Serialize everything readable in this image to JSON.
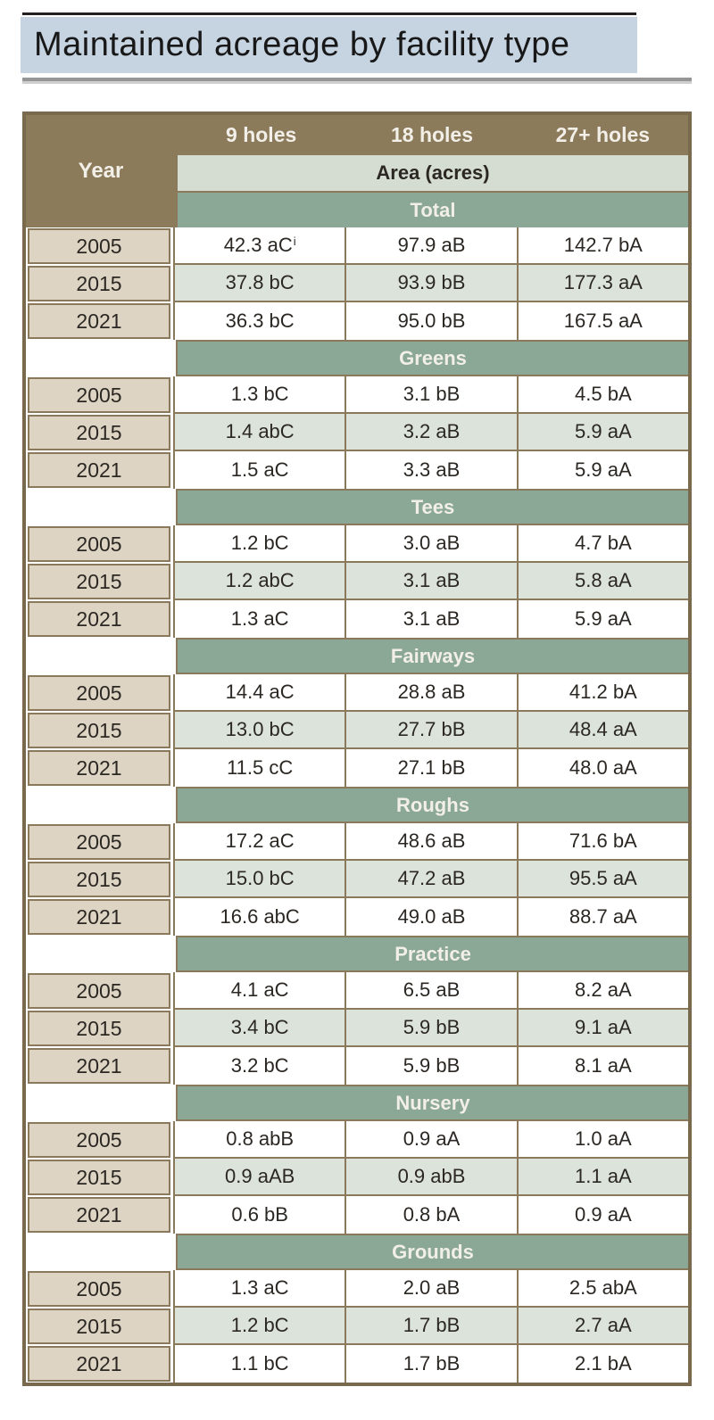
{
  "title": "Maintained acreage by facility type",
  "colors": {
    "title_band": "#c6d3e0",
    "header_brown": "#8c7b5b",
    "grid_brown": "#8a795a",
    "outer_border": "#7a6a4d",
    "year_cell_beige": "#ddd4c3",
    "section_sage": "#8ba795",
    "area_band_light": "#d5ddd3",
    "row_alt_green": "#dce3da",
    "header_text": "#f2efe8",
    "body_text": "#2b2723"
  },
  "chart_data": {
    "type": "table",
    "title": "Maintained acreage by facility type",
    "corner_label": "Year",
    "column_headers": [
      "9 holes",
      "18 holes",
      "27+ holes"
    ],
    "spanner": "Area (acres)",
    "sections": [
      {
        "label": "Total",
        "rows": [
          {
            "year": "2005",
            "values": [
              {
                "t": "42.3 aC",
                "sup": "i"
              },
              "97.9 aB",
              "142.7 bA"
            ]
          },
          {
            "year": "2015",
            "values": [
              "37.8 bC",
              "93.9 bB",
              "177.3 aA"
            ]
          },
          {
            "year": "2021",
            "values": [
              "36.3 bC",
              "95.0 bB",
              "167.5 aA"
            ]
          }
        ]
      },
      {
        "label": "Greens",
        "rows": [
          {
            "year": "2005",
            "values": [
              "1.3 bC",
              "3.1 bB",
              "4.5 bA"
            ]
          },
          {
            "year": "2015",
            "values": [
              "1.4 abC",
              "3.2 aB",
              "5.9 aA"
            ]
          },
          {
            "year": "2021",
            "values": [
              "1.5 aC",
              "3.3 aB",
              "5.9 aA"
            ]
          }
        ]
      },
      {
        "label": "Tees",
        "rows": [
          {
            "year": "2005",
            "values": [
              "1.2 bC",
              "3.0 aB",
              "4.7 bA"
            ]
          },
          {
            "year": "2015",
            "values": [
              "1.2 abC",
              "3.1 aB",
              "5.8 aA"
            ]
          },
          {
            "year": "2021",
            "values": [
              "1.3 aC",
              "3.1 aB",
              "5.9 aA"
            ]
          }
        ]
      },
      {
        "label": "Fairways",
        "rows": [
          {
            "year": "2005",
            "values": [
              "14.4 aC",
              "28.8 aB",
              "41.2 bA"
            ]
          },
          {
            "year": "2015",
            "values": [
              "13.0 bC",
              "27.7 bB",
              "48.4 aA"
            ]
          },
          {
            "year": "2021",
            "values": [
              "11.5 cC",
              "27.1 bB",
              "48.0 aA"
            ]
          }
        ]
      },
      {
        "label": "Roughs",
        "rows": [
          {
            "year": "2005",
            "values": [
              "17.2 aC",
              "48.6 aB",
              "71.6 bA"
            ]
          },
          {
            "year": "2015",
            "values": [
              "15.0 bC",
              "47.2 aB",
              "95.5 aA"
            ]
          },
          {
            "year": "2021",
            "values": [
              "16.6 abC",
              "49.0 aB",
              "88.7 aA"
            ]
          }
        ]
      },
      {
        "label": "Practice",
        "rows": [
          {
            "year": "2005",
            "values": [
              "4.1 aC",
              "6.5 aB",
              "8.2 aA"
            ]
          },
          {
            "year": "2015",
            "values": [
              "3.4 bC",
              "5.9 bB",
              "9.1 aA"
            ]
          },
          {
            "year": "2021",
            "values": [
              "3.2 bC",
              "5.9 bB",
              "8.1 aA"
            ]
          }
        ]
      },
      {
        "label": "Nursery",
        "rows": [
          {
            "year": "2005",
            "values": [
              "0.8 abB",
              "0.9 aA",
              "1.0 aA"
            ]
          },
          {
            "year": "2015",
            "values": [
              "0.9 aAB",
              "0.9 abB",
              "1.1 aA"
            ]
          },
          {
            "year": "2021",
            "values": [
              "0.6 bB",
              "0.8 bA",
              "0.9 aA"
            ]
          }
        ]
      },
      {
        "label": "Grounds",
        "rows": [
          {
            "year": "2005",
            "values": [
              "1.3 aC",
              "2.0 aB",
              "2.5 abA"
            ]
          },
          {
            "year": "2015",
            "values": [
              "1.2 bC",
              "1.7 bB",
              "2.7 aA"
            ]
          },
          {
            "year": "2021",
            "values": [
              "1.1 bC",
              "1.7 bB",
              "2.1 bA"
            ]
          }
        ]
      }
    ]
  }
}
